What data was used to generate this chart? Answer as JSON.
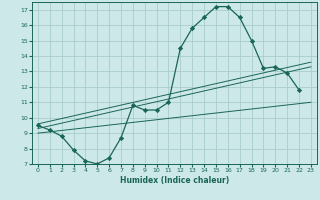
{
  "xlabel": "Humidex (Indice chaleur)",
  "bg_color": "#cce8e8",
  "grid_color": "#aacccc",
  "line_color": "#1a6655",
  "xlim": [
    -0.5,
    23.5
  ],
  "ylim": [
    7,
    17.5
  ],
  "xticks": [
    0,
    1,
    2,
    3,
    4,
    5,
    6,
    7,
    8,
    9,
    10,
    11,
    12,
    13,
    14,
    15,
    16,
    17,
    18,
    19,
    20,
    21,
    22,
    23
  ],
  "yticks": [
    7,
    8,
    9,
    10,
    11,
    12,
    13,
    14,
    15,
    16,
    17
  ],
  "main_x": [
    0,
    1,
    2,
    3,
    4,
    5,
    6,
    7,
    8,
    9,
    10,
    11,
    12,
    13,
    14,
    15,
    16,
    17,
    18,
    19,
    20,
    21,
    22
  ],
  "main_y": [
    9.5,
    9.2,
    8.8,
    7.9,
    7.2,
    7.0,
    7.4,
    8.7,
    10.8,
    10.5,
    10.5,
    11.0,
    14.5,
    15.8,
    16.5,
    17.2,
    17.2,
    16.5,
    15.0,
    13.2,
    13.3,
    12.9,
    11.8
  ],
  "reg_lines": [
    {
      "x": [
        0,
        23
      ],
      "y": [
        9.0,
        11.0
      ]
    },
    {
      "x": [
        0,
        23
      ],
      "y": [
        9.3,
        13.3
      ]
    },
    {
      "x": [
        0,
        23
      ],
      "y": [
        9.6,
        13.6
      ]
    }
  ]
}
